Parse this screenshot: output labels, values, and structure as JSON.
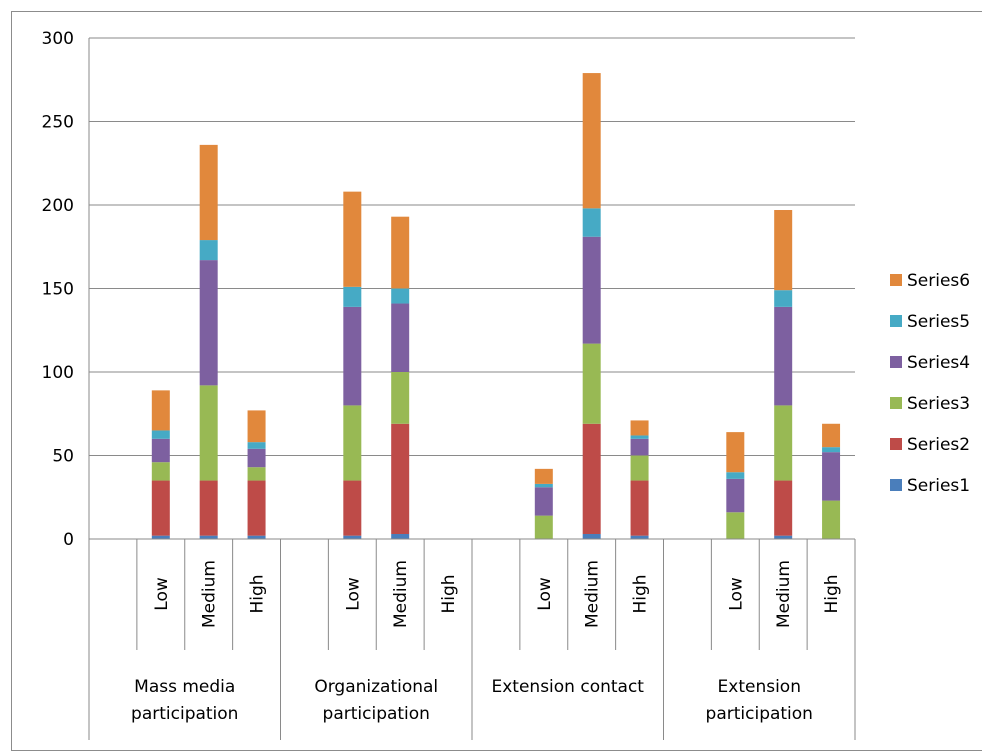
{
  "chart_data": {
    "type": "bar",
    "stacked": true,
    "title": "",
    "xlabel": "",
    "ylabel": "",
    "ylim": [
      0,
      300
    ],
    "yticks": [
      0,
      50,
      100,
      150,
      200,
      250,
      300
    ],
    "grid": true,
    "legend_position": "right",
    "groups": [
      {
        "label": "Mass media participation",
        "lines": [
          "Mass media",
          "participation"
        ],
        "categories": [
          "Low",
          "Medium",
          "High"
        ]
      },
      {
        "label": "Organizational participation",
        "lines": [
          "Organizational",
          "participation"
        ],
        "categories": [
          "Low",
          "Medium",
          "High"
        ]
      },
      {
        "label": "Extension contact",
        "lines": [
          "Extension contact"
        ],
        "categories": [
          "Low",
          "Medium",
          "High"
        ]
      },
      {
        "label": "Extension participation",
        "lines": [
          "Extension",
          "participation"
        ],
        "categories": [
          "Low",
          "Medium",
          "High"
        ]
      }
    ],
    "series": [
      {
        "name": "Series1",
        "color": "#4a7ebb",
        "values": [
          2,
          2,
          2,
          2,
          3,
          0,
          0,
          3,
          2,
          0,
          2,
          0
        ]
      },
      {
        "name": "Series2",
        "color": "#be4b48",
        "values": [
          33,
          33,
          33,
          33,
          66,
          0,
          0,
          66,
          33,
          0,
          33,
          0
        ]
      },
      {
        "name": "Series3",
        "color": "#98b954",
        "values": [
          11,
          57,
          8,
          45,
          31,
          0,
          14,
          48,
          15,
          16,
          45,
          23
        ]
      },
      {
        "name": "Series4",
        "color": "#7d60a0",
        "values": [
          14,
          75,
          11,
          59,
          41,
          0,
          17,
          64,
          10,
          20,
          59,
          29
        ]
      },
      {
        "name": "Series5",
        "color": "#46aac5",
        "values": [
          5,
          12,
          4,
          12,
          9,
          0,
          2,
          17,
          2,
          4,
          10,
          3
        ]
      },
      {
        "name": "Series6",
        "color": "#e1883c",
        "values": [
          24,
          57,
          19,
          57,
          43,
          0,
          9,
          81,
          9,
          24,
          48,
          14
        ]
      }
    ]
  }
}
